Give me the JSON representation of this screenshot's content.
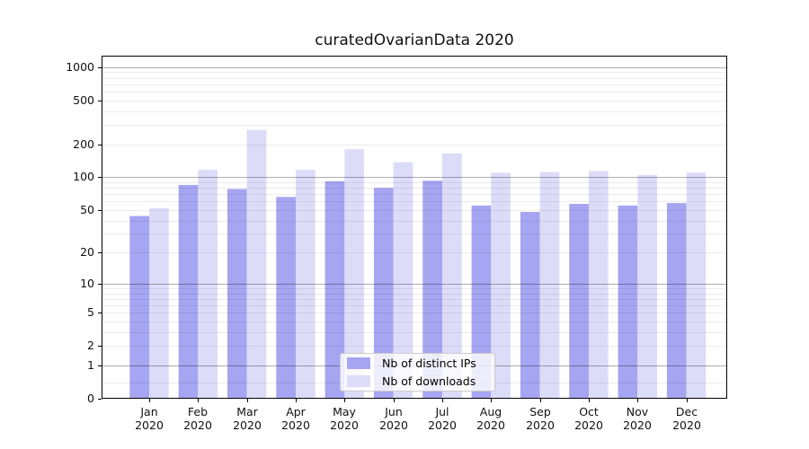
{
  "chart_data": {
    "type": "bar",
    "title": "curatedOvarianData 2020",
    "xlabel": "",
    "ylabel": "",
    "yscale": "log1p",
    "ylim": [
      0,
      1260
    ],
    "grid": "on",
    "legend_position": "lower-center",
    "categories": [
      "Jan 2020",
      "Feb 2020",
      "Mar 2020",
      "Apr 2020",
      "May 2020",
      "Jun 2020",
      "Jul 2020",
      "Aug 2020",
      "Sep 2020",
      "Oct 2020",
      "Nov 2020",
      "Dec 2020"
    ],
    "series": [
      {
        "name": "Nb of distinct IPs",
        "color": "#a5a5f1",
        "values": [
          44,
          85,
          78,
          66,
          92,
          80,
          93,
          55,
          48,
          57,
          55,
          58
        ]
      },
      {
        "name": "Nb of downloads",
        "color": "#dcdcf9",
        "values": [
          52,
          117,
          270,
          117,
          180,
          137,
          165,
          110,
          112,
          114,
          105,
          110
        ]
      }
    ],
    "yticks": [
      1000,
      500,
      200,
      100,
      50,
      20,
      10,
      5,
      2,
      1,
      0
    ]
  },
  "colors": {
    "background": "#ffffff",
    "axis": "#000000",
    "grid_major": "#b0b0b0",
    "grid_minor": "#ececec",
    "legend_border": "#cccccc",
    "bar_distinct_ips": "#a5a5f1",
    "bar_downloads": "#dcdcf9"
  }
}
